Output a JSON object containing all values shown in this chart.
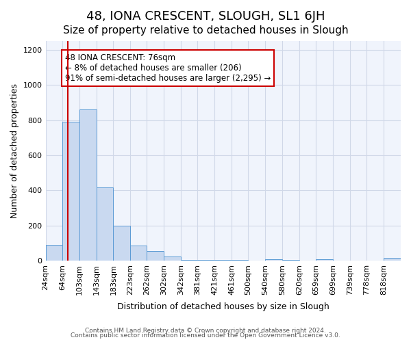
{
  "title": "48, IONA CRESCENT, SLOUGH, SL1 6JH",
  "subtitle": "Size of property relative to detached houses in Slough",
  "xlabel": "Distribution of detached houses by size in Slough",
  "ylabel": "Number of detached properties",
  "bar_color": "#c9d9f0",
  "bar_edge_color": "#5b9bd5",
  "bins": [
    24,
    64,
    103,
    143,
    183,
    223,
    262,
    302,
    342,
    381,
    421,
    461,
    500,
    540,
    580,
    620,
    659,
    699,
    739,
    778,
    818,
    858
  ],
  "bin_labels": [
    "24sqm",
    "64sqm",
    "103sqm",
    "143sqm",
    "183sqm",
    "223sqm",
    "262sqm",
    "302sqm",
    "342sqm",
    "381sqm",
    "421sqm",
    "461sqm",
    "500sqm",
    "540sqm",
    "580sqm",
    "620sqm",
    "659sqm",
    "699sqm",
    "739sqm",
    "778sqm",
    "818sqm"
  ],
  "values": [
    90,
    790,
    860,
    415,
    200,
    85,
    53,
    22,
    5,
    2,
    2,
    2,
    0,
    6,
    2,
    0,
    7,
    0,
    0,
    0,
    15
  ],
  "red_line_x": 76,
  "annotation_text": "48 IONA CRESCENT: 76sqm\n← 8% of detached houses are smaller (206)\n91% of semi-detached houses are larger (2,295) →",
  "annotation_box_color": "#ffffff",
  "annotation_box_edge_color": "#cc0000",
  "red_line_color": "#cc0000",
  "ylim": [
    0,
    1250
  ],
  "yticks": [
    0,
    200,
    400,
    600,
    800,
    1000,
    1200
  ],
  "footnote1": "Contains HM Land Registry data © Crown copyright and database right 2024.",
  "footnote2": "Contains public sector information licensed under the Open Government Licence v3.0.",
  "grid_color": "#d0d8e8",
  "title_fontsize": 13,
  "subtitle_fontsize": 11,
  "axis_label_fontsize": 9,
  "tick_fontsize": 8
}
